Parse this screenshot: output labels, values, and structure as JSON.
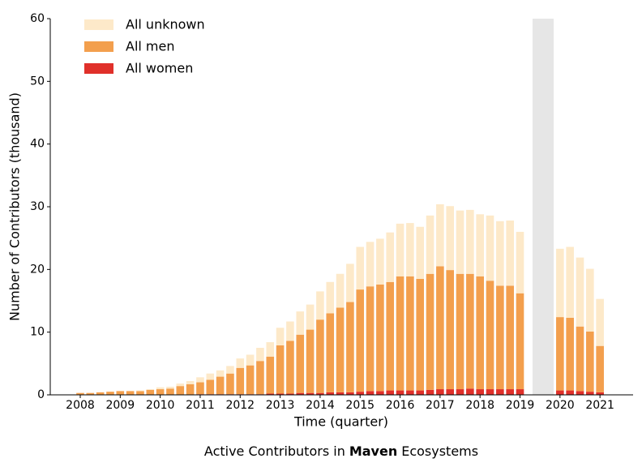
{
  "chart_data": {
    "type": "stacked_bar",
    "title": {
      "prefix": "Active Contributors in",
      "emphasis": "Maven",
      "suffix": "Ecosystems"
    },
    "x_label": "Time (quarter)",
    "y_label": "Number of Contributors (thousand)",
    "categories": [
      "2008",
      null,
      null,
      null,
      "2009",
      null,
      null,
      null,
      "2010",
      null,
      null,
      null,
      "2011",
      null,
      null,
      null,
      "2012",
      null,
      null,
      null,
      "2013",
      null,
      null,
      null,
      "2014",
      null,
      null,
      null,
      "2015",
      null,
      null,
      null,
      "2016",
      null,
      null,
      null,
      "2017",
      null,
      null,
      null,
      "2018",
      null,
      null,
      null,
      "2019",
      null,
      null,
      null,
      "2020",
      null,
      null,
      null,
      "2021"
    ],
    "series": [
      {
        "name": "All women",
        "color": "#e0302a",
        "values": [
          0,
          0,
          0,
          0,
          0,
          0,
          0,
          0,
          0,
          0,
          0,
          0,
          0.1,
          0.1,
          0.1,
          0.1,
          0.1,
          0.1,
          0.1,
          0.2,
          0.2,
          0.2,
          0.3,
          0.3,
          0.3,
          0.4,
          0.4,
          0.4,
          0.5,
          0.6,
          0.6,
          0.7,
          0.7,
          0.7,
          0.7,
          0.8,
          0.9,
          0.9,
          0.9,
          1.0,
          0.9,
          0.9,
          0.9,
          0.9,
          0.9,
          null,
          null,
          null,
          0.7,
          0.7,
          0.6,
          0.5,
          0.4
        ]
      },
      {
        "name": "All men",
        "color": "#f39f4d",
        "values": [
          0.3,
          0.3,
          0.4,
          0.5,
          0.6,
          0.6,
          0.6,
          0.8,
          0.9,
          1.0,
          1.4,
          1.7,
          1.9,
          2.3,
          2.8,
          3.3,
          4.2,
          4.6,
          5.3,
          5.9,
          7.7,
          8.4,
          9.3,
          10.1,
          11.7,
          12.6,
          13.5,
          14.4,
          16.3,
          16.7,
          17.0,
          17.3,
          18.2,
          18.2,
          17.8,
          18.5,
          19.6,
          19.0,
          18.4,
          18.3,
          18.0,
          17.3,
          16.5,
          16.5,
          15.3,
          null,
          null,
          null,
          11.7,
          11.6,
          10.3,
          9.6,
          7.4
        ]
      },
      {
        "name": "All unknown",
        "color": "#fde9c9",
        "values": [
          0,
          0,
          0,
          0,
          0,
          0,
          0.1,
          0.1,
          0.3,
          0.3,
          0.4,
          0.5,
          0.8,
          1.0,
          1.0,
          1.2,
          1.5,
          1.7,
          2.1,
          2.3,
          2.8,
          3.1,
          3.7,
          4.0,
          4.5,
          5.0,
          5.4,
          6.1,
          6.8,
          7.1,
          7.3,
          7.9,
          8.4,
          8.5,
          8.3,
          9.3,
          9.9,
          10.2,
          10.1,
          10.2,
          9.9,
          10.4,
          10.3,
          10.4,
          9.8,
          null,
          null,
          null,
          10.9,
          11.3,
          11.0,
          10.0,
          7.5
        ]
      }
    ],
    "ylim": [
      0,
      60
    ],
    "yticks": [
      0,
      10,
      20,
      30,
      40,
      50,
      60
    ],
    "legend": "upper left"
  }
}
